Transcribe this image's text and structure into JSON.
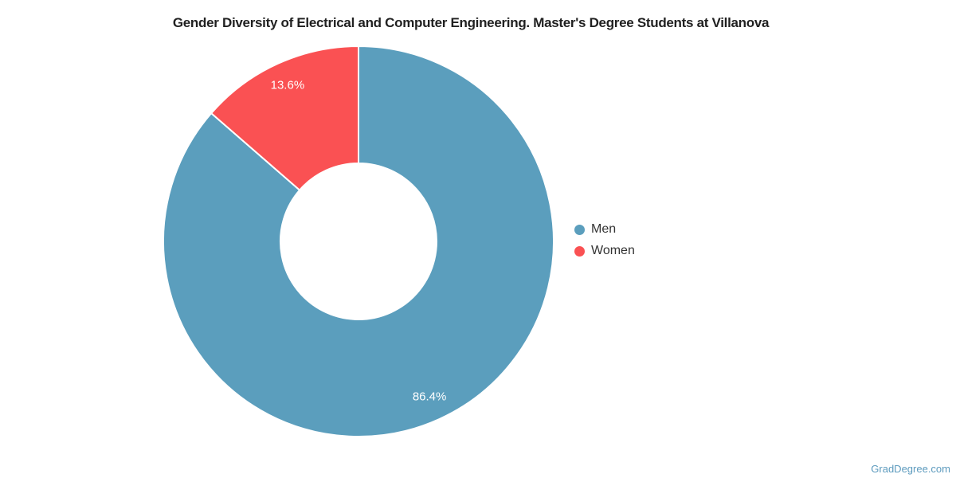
{
  "chart_data": {
    "type": "pie",
    "subtype": "donut",
    "title": "Gender Diversity of Electrical and Computer Engineering. Master's Degree Students at Villanova",
    "categories": [
      "Men",
      "Women"
    ],
    "values": [
      86.4,
      13.6
    ],
    "data_labels": [
      "86.4%",
      "13.6%"
    ],
    "colors": [
      "#5B9EBD",
      "#FA5153"
    ],
    "inner_radius_pct": 40,
    "start_angle_deg": 0,
    "direction": "clockwise",
    "legend_position": "right",
    "data_label_color": "#ffffff",
    "slice_border_color": "#ffffff",
    "title_color": "#212121",
    "legend_text_color": "#333333"
  },
  "watermark": {
    "label": "GradDegree.com",
    "color": "#5D9BBE"
  }
}
